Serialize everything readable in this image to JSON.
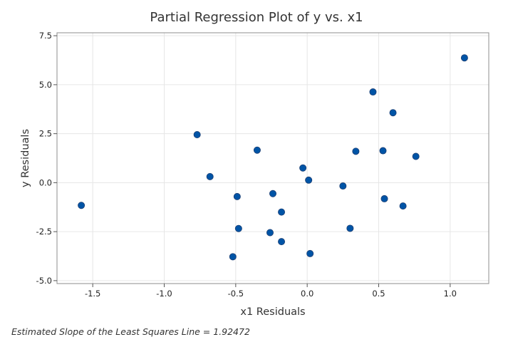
{
  "chart_data": {
    "type": "scatter",
    "title": "Partial Regression Plot of y vs. x1",
    "xlabel": "x1 Residuals",
    "ylabel": "y Residuals",
    "xlim": [
      -1.75,
      1.27
    ],
    "ylim": [
      -5.15,
      7.65
    ],
    "xticks": [
      -1.5,
      -1.0,
      -0.5,
      0.0,
      0.5,
      1.0
    ],
    "xtick_labels": [
      "-1.5",
      "-1.0",
      "-0.5",
      "0.0",
      "0.5",
      "1.0"
    ],
    "yticks": [
      -5.0,
      -2.5,
      0.0,
      2.5,
      5.0,
      7.5
    ],
    "ytick_labels": [
      "-5.0",
      "-2.5",
      "0.0",
      "2.5",
      "5.0",
      "7.5"
    ],
    "grid": true,
    "marker_color": "#0054a6",
    "points": [
      {
        "x": -1.58,
        "y": -1.16
      },
      {
        "x": -0.77,
        "y": 2.45
      },
      {
        "x": -0.68,
        "y": 0.31
      },
      {
        "x": -0.52,
        "y": -3.78
      },
      {
        "x": -0.49,
        "y": -0.71
      },
      {
        "x": -0.48,
        "y": -2.34
      },
      {
        "x": -0.35,
        "y": 1.66
      },
      {
        "x": -0.26,
        "y": -2.55
      },
      {
        "x": -0.24,
        "y": -0.56
      },
      {
        "x": -0.18,
        "y": -1.5
      },
      {
        "x": -0.18,
        "y": -3.01
      },
      {
        "x": -0.03,
        "y": 0.75
      },
      {
        "x": 0.01,
        "y": 0.13
      },
      {
        "x": 0.02,
        "y": -3.62
      },
      {
        "x": 0.25,
        "y": -0.17
      },
      {
        "x": 0.3,
        "y": -2.33
      },
      {
        "x": 0.34,
        "y": 1.6
      },
      {
        "x": 0.46,
        "y": 4.63
      },
      {
        "x": 0.53,
        "y": 1.63
      },
      {
        "x": 0.54,
        "y": -0.82
      },
      {
        "x": 0.6,
        "y": 3.57
      },
      {
        "x": 0.67,
        "y": -1.19
      },
      {
        "x": 0.76,
        "y": 1.34
      },
      {
        "x": 1.1,
        "y": 6.37
      }
    ]
  },
  "footnote": "Estimated Slope of the Least Squares Line = 1.92472"
}
